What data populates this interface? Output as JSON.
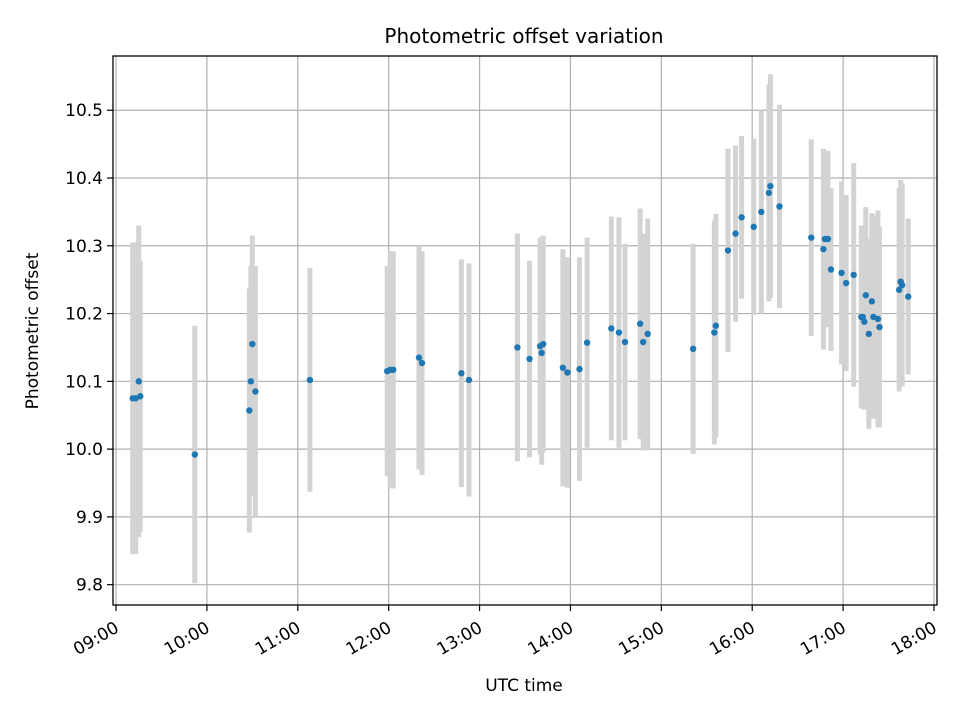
{
  "chart_data": {
    "type": "scatter",
    "title": "Photometric offset variation",
    "xlabel": "UTC time",
    "ylabel": "Photometric offset",
    "x_tick_labels": [
      "09:00",
      "10:00",
      "11:00",
      "12:00",
      "13:00",
      "14:00",
      "15:00",
      "16:00",
      "17:00",
      "18:00"
    ],
    "x_ticks": [
      "09:00",
      "10:00",
      "11:00",
      "12:00",
      "13:00",
      "14:00",
      "15:00",
      "16:00",
      "17:00",
      "18:00"
    ],
    "y_ticks": [
      9.8,
      9.9,
      10.0,
      10.1,
      10.2,
      10.3,
      10.4,
      10.5
    ],
    "y_tick_labels": [
      "9.8",
      "9.9",
      "10.0",
      "10.1",
      "10.2",
      "10.3",
      "10.4",
      "10.5"
    ],
    "xlim": [
      "08:58",
      "18:02"
    ],
    "ylim": [
      9.77,
      10.58
    ],
    "grid": true,
    "colors": {
      "point": "#1f77b4",
      "errorbar": "#d3d3d3",
      "grid": "#b0b0b0"
    },
    "series": [
      {
        "x": [
          "09:11",
          "09:13",
          "09:15",
          "09:16",
          "09:52",
          "10:28",
          "10:29",
          "10:30",
          "10:32",
          "11:08",
          "11:59",
          "12:01",
          "12:03",
          "12:20",
          "12:22",
          "12:48",
          "12:53",
          "13:25",
          "13:33",
          "13:40",
          "13:41",
          "13:42",
          "13:55",
          "13:58",
          "14:06",
          "14:11",
          "14:27",
          "14:32",
          "14:36",
          "14:46",
          "14:48",
          "14:51",
          "15:21",
          "15:35",
          "15:36",
          "15:44",
          "15:49",
          "15:53",
          "16:01",
          "16:06",
          "16:11",
          "16:12",
          "16:18",
          "16:39",
          "16:47",
          "16:48",
          "16:50",
          "16:52",
          "16:59",
          "17:02",
          "17:07",
          "17:12",
          "17:13",
          "17:14",
          "17:15",
          "17:17",
          "17:19",
          "17:20",
          "17:23",
          "17:24",
          "17:37",
          "17:38",
          "17:39",
          "17:43"
        ],
        "y": [
          10.075,
          10.075,
          10.1,
          10.078,
          9.992,
          10.057,
          10.1,
          10.155,
          10.085,
          10.102,
          10.115,
          10.117,
          10.117,
          10.135,
          10.127,
          10.112,
          10.102,
          10.15,
          10.133,
          10.152,
          10.142,
          10.155,
          10.12,
          10.113,
          10.118,
          10.157,
          10.178,
          10.172,
          10.158,
          10.185,
          10.158,
          10.17,
          10.148,
          10.172,
          10.182,
          10.293,
          10.318,
          10.342,
          10.328,
          10.35,
          10.378,
          10.388,
          10.358,
          10.312,
          10.295,
          10.31,
          10.31,
          10.265,
          10.26,
          10.245,
          10.257,
          10.195,
          10.195,
          10.188,
          10.227,
          10.17,
          10.218,
          10.195,
          10.192,
          10.18,
          10.235,
          10.247,
          10.242,
          10.225
        ],
        "yerr": [
          0.23,
          0.23,
          0.23,
          0.2,
          0.19,
          0.18,
          0.17,
          0.16,
          0.185,
          0.165,
          0.155,
          0.175,
          0.175,
          0.165,
          0.165,
          0.168,
          0.172,
          0.168,
          0.145,
          0.16,
          0.165,
          0.16,
          0.175,
          0.17,
          0.165,
          0.155,
          0.165,
          0.17,
          0.145,
          0.17,
          0.16,
          0.17,
          0.155,
          0.165,
          0.165,
          0.15,
          0.13,
          0.12,
          0.13,
          0.15,
          0.16,
          0.165,
          0.15,
          0.145,
          0.148,
          0.13,
          0.13,
          0.12,
          0.135,
          0.13,
          0.165,
          0.135,
          0.135,
          0.13,
          0.13,
          0.14,
          0.13,
          0.15,
          0.16,
          0.148,
          0.15,
          0.15,
          0.15,
          0.115
        ]
      }
    ]
  }
}
